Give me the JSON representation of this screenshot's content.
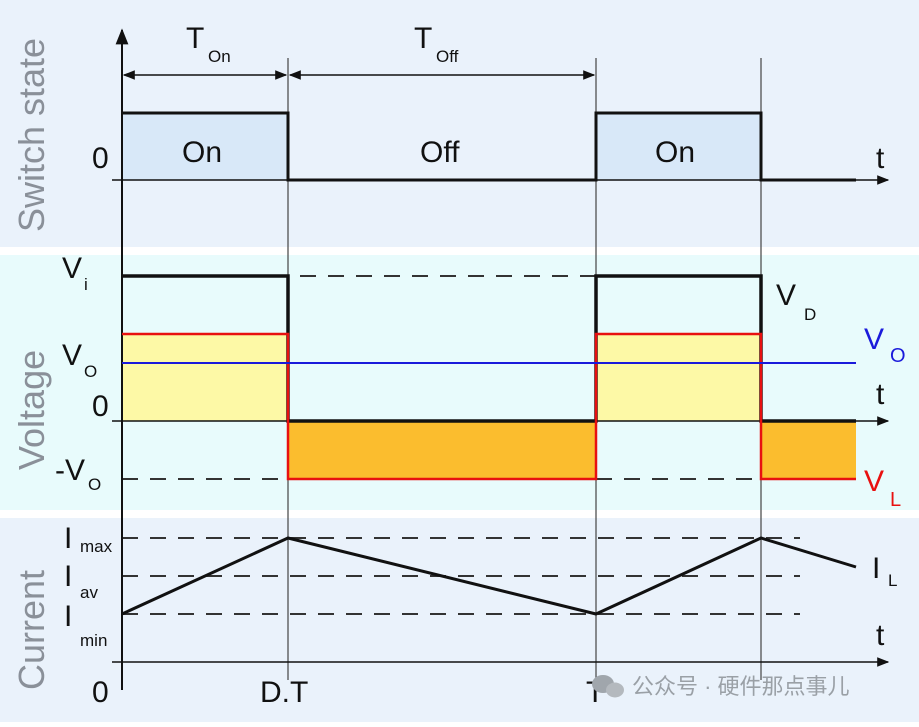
{
  "panels": {
    "switch": {
      "title": "Switch state",
      "zero": "0",
      "on": "On",
      "off": "Off",
      "t": "t"
    },
    "voltage": {
      "title": "Voltage",
      "vi": "V",
      "vi_sub": "i",
      "vo": "V",
      "vo_sub": "O",
      "zero": "0",
      "neg_vo": "-V",
      "neg_vo_sub": "O",
      "vd": "V",
      "vd_sub": "D",
      "vo_right": "V",
      "vo_right_sub": "O",
      "vl": "V",
      "vl_sub": "L",
      "t": "t"
    },
    "current": {
      "title": "Current",
      "imax": "I",
      "imax_sub": "max",
      "iav": "I",
      "iav_sub": "av",
      "imin": "I",
      "imin_sub": "min",
      "il": "I",
      "il_sub": "L",
      "t": "t"
    }
  },
  "timing": {
    "ton": "T",
    "ton_sub": "On",
    "toff": "T",
    "toff_sub": "Off"
  },
  "x_ticks": {
    "zero": "0",
    "dt": "D.T",
    "t": "T"
  },
  "watermark": "公众号 · 硬件那点事儿",
  "colors": {
    "vo": "#1a1adb",
    "vl": "#e81010",
    "on_fill": "#d8e8f8",
    "positive_fill": "#fdf9a6",
    "negative_fill": "#fbbd2e"
  }
}
